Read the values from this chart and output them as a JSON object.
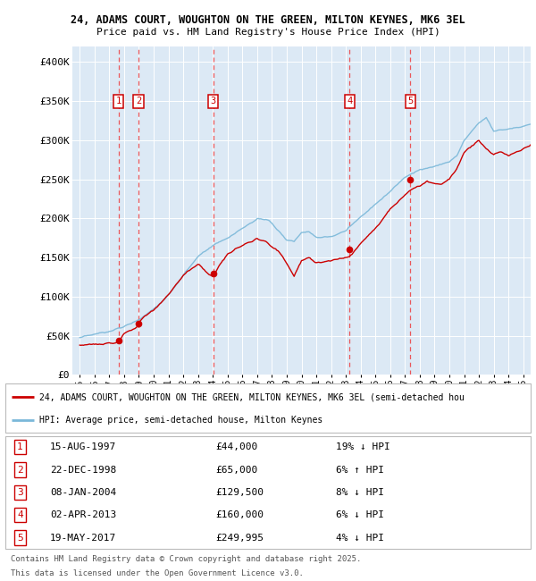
{
  "title_line1": "24, ADAMS COURT, WOUGHTON ON THE GREEN, MILTON KEYNES, MK6 3EL",
  "title_line2": "Price paid vs. HM Land Registry's House Price Index (HPI)",
  "plot_bg_color": "#dce9f5",
  "transactions": [
    {
      "num": 1,
      "date_str": "15-AUG-1997",
      "date_x": 1997.62,
      "price": 44000,
      "pct": "19%",
      "dir": "↓"
    },
    {
      "num": 2,
      "date_str": "22-DEC-1998",
      "date_x": 1998.97,
      "price": 65000,
      "pct": "6%",
      "dir": "↑"
    },
    {
      "num": 3,
      "date_str": "08-JAN-2004",
      "date_x": 2004.02,
      "price": 129500,
      "pct": "8%",
      "dir": "↓"
    },
    {
      "num": 4,
      "date_str": "02-APR-2013",
      "date_x": 2013.25,
      "price": 160000,
      "pct": "6%",
      "dir": "↓"
    },
    {
      "num": 5,
      "date_str": "19-MAY-2017",
      "date_x": 2017.37,
      "price": 249995,
      "pct": "4%",
      "dir": "↓"
    }
  ],
  "hpi_line_color": "#7ab8d9",
  "price_line_color": "#cc0000",
  "ylim_min": 0,
  "ylim_max": 420000,
  "xlim_min": 1994.5,
  "xlim_max": 2025.5,
  "ytick_values": [
    0,
    50000,
    100000,
    150000,
    200000,
    250000,
    300000,
    350000,
    400000
  ],
  "ytick_labels": [
    "£0",
    "£50K",
    "£100K",
    "£150K",
    "£200K",
    "£250K",
    "£300K",
    "£350K",
    "£400K"
  ],
  "xtick_years": [
    1995,
    1996,
    1997,
    1998,
    1999,
    2000,
    2001,
    2002,
    2003,
    2004,
    2005,
    2006,
    2007,
    2008,
    2009,
    2010,
    2011,
    2012,
    2013,
    2014,
    2015,
    2016,
    2017,
    2018,
    2019,
    2020,
    2021,
    2022,
    2023,
    2024,
    2025
  ],
  "legend_label_price": "24, ADAMS COURT, WOUGHTON ON THE GREEN, MILTON KEYNES, MK6 3EL (semi-detached hou",
  "legend_label_hpi": "HPI: Average price, semi-detached house, Milton Keynes",
  "footer_line1": "Contains HM Land Registry data © Crown copyright and database right 2025.",
  "footer_line2": "This data is licensed under the Open Government Licence v3.0."
}
